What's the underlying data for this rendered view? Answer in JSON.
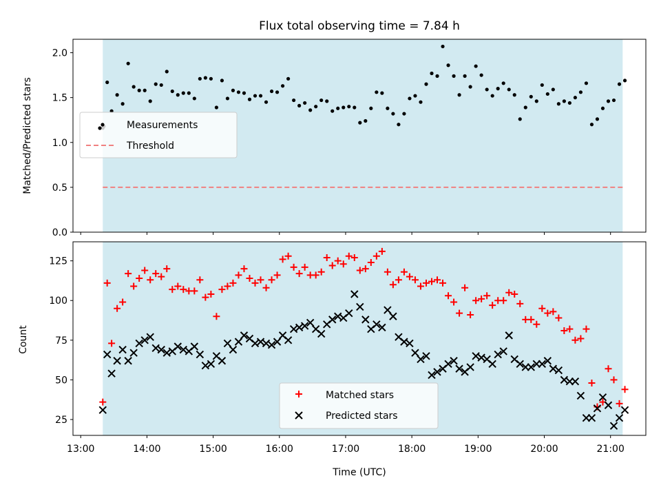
{
  "chart_data": [
    {
      "type": "scatter",
      "title": "Flux total observing time = 7.84 h",
      "xlabel": "",
      "ylabel": "Matched/Predicted stars",
      "xlim": [
        "12:53",
        "21:32"
      ],
      "ylim": [
        0,
        2.15
      ],
      "yticks": [
        "0.0",
        "0.5",
        "1.0",
        "1.5",
        "2.0"
      ],
      "ytick_values": [
        0,
        0.5,
        1.0,
        1.5,
        2.0
      ],
      "shaded_span": [
        "13:20",
        "21:11"
      ],
      "shade_color": "#add8e6",
      "legend": {
        "placement": "center-left",
        "entries": [
          "Measurements",
          "Threshold"
        ]
      },
      "threshold": {
        "name": "Threshold",
        "value": 0.5,
        "color": "#f08080",
        "style": "dashed"
      },
      "series": [
        {
          "name": "Measurements",
          "color": "#000000",
          "marker": "dot",
          "x": [
            "13:20",
            "13:21",
            "13:24",
            "13:28",
            "13:33",
            "13:38",
            "13:43",
            "13:48",
            "13:53",
            "13:58",
            "14:03",
            "14:08",
            "14:13",
            "14:18",
            "14:23",
            "14:28",
            "14:33",
            "14:38",
            "14:43",
            "14:48",
            "14:53",
            "14:58",
            "15:03",
            "15:08",
            "15:13",
            "15:18",
            "15:23",
            "15:28",
            "15:33",
            "15:38",
            "15:43",
            "15:48",
            "15:53",
            "15:58",
            "16:03",
            "16:08",
            "16:13",
            "16:18",
            "16:23",
            "16:28",
            "16:33",
            "16:38",
            "16:43",
            "16:48",
            "16:53",
            "16:58",
            "17:03",
            "17:08",
            "17:13",
            "17:18",
            "17:23",
            "17:28",
            "17:33",
            "17:38",
            "17:43",
            "17:48",
            "17:53",
            "17:58",
            "18:03",
            "18:08",
            "18:13",
            "18:18",
            "18:23",
            "18:28",
            "18:33",
            "18:38",
            "18:43",
            "18:48",
            "18:53",
            "18:58",
            "19:03",
            "19:08",
            "19:13",
            "19:18",
            "19:23",
            "19:28",
            "19:33",
            "19:38",
            "19:43",
            "19:48",
            "19:53",
            "19:58",
            "20:03",
            "20:08",
            "20:13",
            "20:18",
            "20:23",
            "20:28",
            "20:33",
            "20:38",
            "20:43",
            "20:48",
            "20:53",
            "20:58",
            "21:03",
            "21:08",
            "21:13"
          ],
          "y": [
            1.16,
            1.18,
            1.67,
            1.35,
            1.53,
            1.43,
            1.88,
            1.62,
            1.58,
            1.58,
            1.46,
            1.65,
            1.64,
            1.79,
            1.57,
            1.53,
            1.55,
            1.55,
            1.49,
            1.71,
            1.72,
            1.71,
            1.39,
            1.69,
            1.49,
            1.58,
            1.56,
            1.55,
            1.48,
            1.52,
            1.52,
            1.45,
            1.57,
            1.56,
            1.63,
            1.71,
            1.47,
            1.41,
            1.44,
            1.36,
            1.4,
            1.47,
            1.46,
            1.35,
            1.38,
            1.39,
            1.4,
            1.39,
            1.22,
            1.24,
            1.38,
            1.56,
            1.55,
            1.38,
            1.32,
            1.2,
            1.32,
            1.49,
            1.52,
            1.45,
            1.65,
            1.77,
            1.74,
            2.07,
            1.86,
            1.74,
            1.53,
            1.74,
            1.62,
            1.85,
            1.75,
            1.59,
            1.52,
            1.6,
            1.66,
            1.59,
            1.53,
            1.26,
            1.39,
            1.51,
            1.46,
            1.64,
            1.54,
            1.59,
            1.43,
            1.46,
            1.44,
            1.5,
            1.56,
            1.66,
            1.2,
            1.26,
            1.38,
            1.46,
            1.47,
            1.65,
            1.69
          ]
        }
      ]
    },
    {
      "type": "scatter",
      "title": "",
      "xlabel": "Time (UTC)",
      "ylabel": "Count",
      "xlim": [
        "12:53",
        "21:32"
      ],
      "xticks": [
        "13:00",
        "14:00",
        "15:00",
        "16:00",
        "17:00",
        "18:00",
        "19:00",
        "20:00",
        "21:00"
      ],
      "ylim": [
        15,
        137
      ],
      "yticks": [
        "25",
        "50",
        "75",
        "100",
        "125"
      ],
      "ytick_values": [
        25,
        50,
        75,
        100,
        125
      ],
      "shaded_span": [
        "13:20",
        "21:11"
      ],
      "shade_color": "#add8e6",
      "legend": {
        "placement": "lower-center",
        "entries": [
          "Matched stars",
          "Predicted stars"
        ]
      },
      "series": [
        {
          "name": "Matched stars",
          "color": "#ff0000",
          "marker": "plus",
          "x": [
            "13:20",
            "13:24",
            "13:28",
            "13:33",
            "13:38",
            "13:43",
            "13:48",
            "13:53",
            "13:58",
            "14:03",
            "14:08",
            "14:13",
            "14:18",
            "14:23",
            "14:28",
            "14:33",
            "14:38",
            "14:43",
            "14:48",
            "14:53",
            "14:58",
            "15:03",
            "15:08",
            "15:13",
            "15:18",
            "15:23",
            "15:28",
            "15:33",
            "15:38",
            "15:43",
            "15:48",
            "15:53",
            "15:58",
            "16:03",
            "16:08",
            "16:13",
            "16:18",
            "16:23",
            "16:28",
            "16:33",
            "16:38",
            "16:43",
            "16:48",
            "16:53",
            "16:58",
            "17:03",
            "17:08",
            "17:13",
            "17:18",
            "17:23",
            "17:28",
            "17:33",
            "17:38",
            "17:43",
            "17:48",
            "17:53",
            "17:58",
            "18:03",
            "18:08",
            "18:13",
            "18:18",
            "18:23",
            "18:28",
            "18:33",
            "18:38",
            "18:43",
            "18:48",
            "18:53",
            "18:58",
            "19:03",
            "19:08",
            "19:13",
            "19:18",
            "19:23",
            "19:28",
            "19:33",
            "19:38",
            "19:43",
            "19:48",
            "19:53",
            "19:58",
            "20:03",
            "20:08",
            "20:13",
            "20:18",
            "20:23",
            "20:28",
            "20:33",
            "20:38",
            "20:43",
            "20:48",
            "20:53",
            "20:58",
            "21:03",
            "21:08",
            "21:13"
          ],
          "y": [
            36,
            111,
            73,
            95,
            99,
            117,
            109,
            114,
            119,
            113,
            117,
            115,
            120,
            107,
            109,
            107,
            106,
            106,
            113,
            102,
            104,
            90,
            107,
            109,
            111,
            116,
            120,
            114,
            111,
            113,
            108,
            113,
            116,
            126,
            128,
            121,
            117,
            121,
            116,
            116,
            118,
            127,
            122,
            125,
            123,
            128,
            127,
            119,
            120,
            124,
            128,
            131,
            118,
            110,
            113,
            118,
            115,
            113,
            109,
            111,
            112,
            113,
            111,
            103,
            99,
            92,
            108,
            91,
            100,
            101,
            103,
            97,
            100,
            100,
            105,
            104,
            98,
            88,
            88,
            85,
            95,
            92,
            93,
            89,
            81,
            82,
            75,
            76,
            82,
            48,
            33,
            36,
            57,
            50,
            35,
            44
          ]
        },
        {
          "name": "Predicted stars",
          "color": "#000000",
          "marker": "x",
          "x": [
            "13:20",
            "13:24",
            "13:28",
            "13:33",
            "13:38",
            "13:43",
            "13:48",
            "13:53",
            "13:58",
            "14:03",
            "14:08",
            "14:13",
            "14:18",
            "14:23",
            "14:28",
            "14:33",
            "14:38",
            "14:43",
            "14:48",
            "14:53",
            "14:58",
            "15:03",
            "15:08",
            "15:13",
            "15:18",
            "15:23",
            "15:28",
            "15:33",
            "15:38",
            "15:43",
            "15:48",
            "15:53",
            "15:58",
            "16:03",
            "16:08",
            "16:13",
            "16:18",
            "16:23",
            "16:28",
            "16:33",
            "16:38",
            "16:43",
            "16:48",
            "16:53",
            "16:58",
            "17:03",
            "17:08",
            "17:13",
            "17:18",
            "17:23",
            "17:28",
            "17:33",
            "17:38",
            "17:43",
            "17:48",
            "17:53",
            "17:58",
            "18:03",
            "18:08",
            "18:13",
            "18:18",
            "18:23",
            "18:28",
            "18:33",
            "18:38",
            "18:43",
            "18:48",
            "18:53",
            "18:58",
            "19:03",
            "19:08",
            "19:13",
            "19:18",
            "19:23",
            "19:28",
            "19:33",
            "19:38",
            "19:43",
            "19:48",
            "19:53",
            "19:58",
            "20:03",
            "20:08",
            "20:13",
            "20:18",
            "20:23",
            "20:28",
            "20:33",
            "20:38",
            "20:43",
            "20:48",
            "20:53",
            "20:58",
            "21:03",
            "21:08",
            "21:13"
          ],
          "y": [
            31,
            66,
            54,
            62,
            69,
            62,
            67,
            73,
            75,
            77,
            70,
            69,
            67,
            68,
            71,
            69,
            68,
            71,
            66,
            59,
            60,
            65,
            62,
            73,
            69,
            74,
            78,
            76,
            73,
            74,
            73,
            72,
            74,
            78,
            75,
            82,
            83,
            84,
            86,
            82,
            79,
            85,
            88,
            90,
            89,
            92,
            104,
            96,
            88,
            82,
            85,
            83,
            94,
            90,
            77,
            74,
            73,
            67,
            63,
            65,
            53,
            55,
            57,
            60,
            62,
            57,
            55,
            58,
            65,
            64,
            63,
            60,
            66,
            68,
            78,
            63,
            60,
            58,
            58,
            60,
            60,
            62,
            57,
            56,
            50,
            49,
            49,
            40,
            26,
            26,
            32,
            39,
            34,
            21,
            26,
            31
          ]
        }
      ]
    }
  ]
}
